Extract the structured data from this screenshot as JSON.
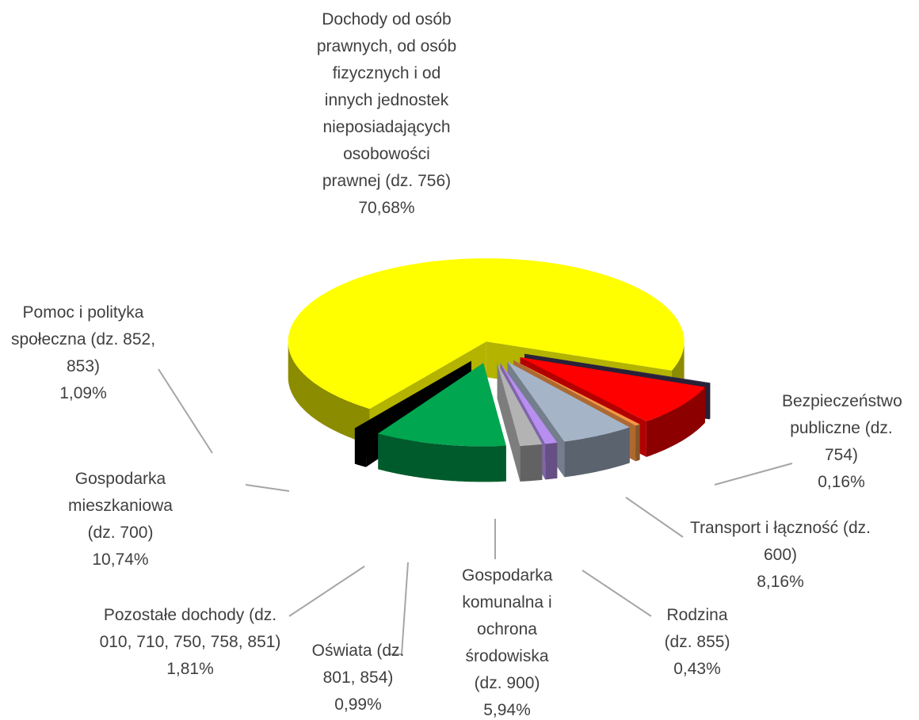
{
  "chart_data": {
    "type": "pie3d",
    "categories": [
      "Dochody od osób prawnych, od osób fizycznych i od innych jednostek nieposiadających osobowości prawnej (dz. 756)",
      "Bezpieczeństwo publiczne (dz. 754)",
      "Transport i łączność (dz. 600)",
      "Rodzina (dz. 855)",
      "Gospodarka komunalna i ochrona środowiska (dz. 900)",
      "Oświata (dz. 801, 854)",
      "Pozostałe dochody (dz. 010, 710, 750, 758, 851)",
      "Gospodarka mieszkaniowa (dz. 700)",
      "Pomoc i polityka społeczna (dz. 852, 853)"
    ],
    "values": [
      70.68,
      0.16,
      8.16,
      0.43,
      5.94,
      0.99,
      1.81,
      10.74,
      1.09
    ],
    "value_labels": [
      "70,68%",
      "0,16%",
      "8,16%",
      "0,43%",
      "5,94%",
      "0,99%",
      "1,81%",
      "10,74%",
      "1,09%"
    ],
    "colors": [
      "#ffff00",
      "#3b2f4f",
      "#ff0000",
      "#f79646",
      "#a6b4c8",
      "#b78ff0",
      "#b3b3b3",
      "#00a650",
      "#000000"
    ]
  }
}
